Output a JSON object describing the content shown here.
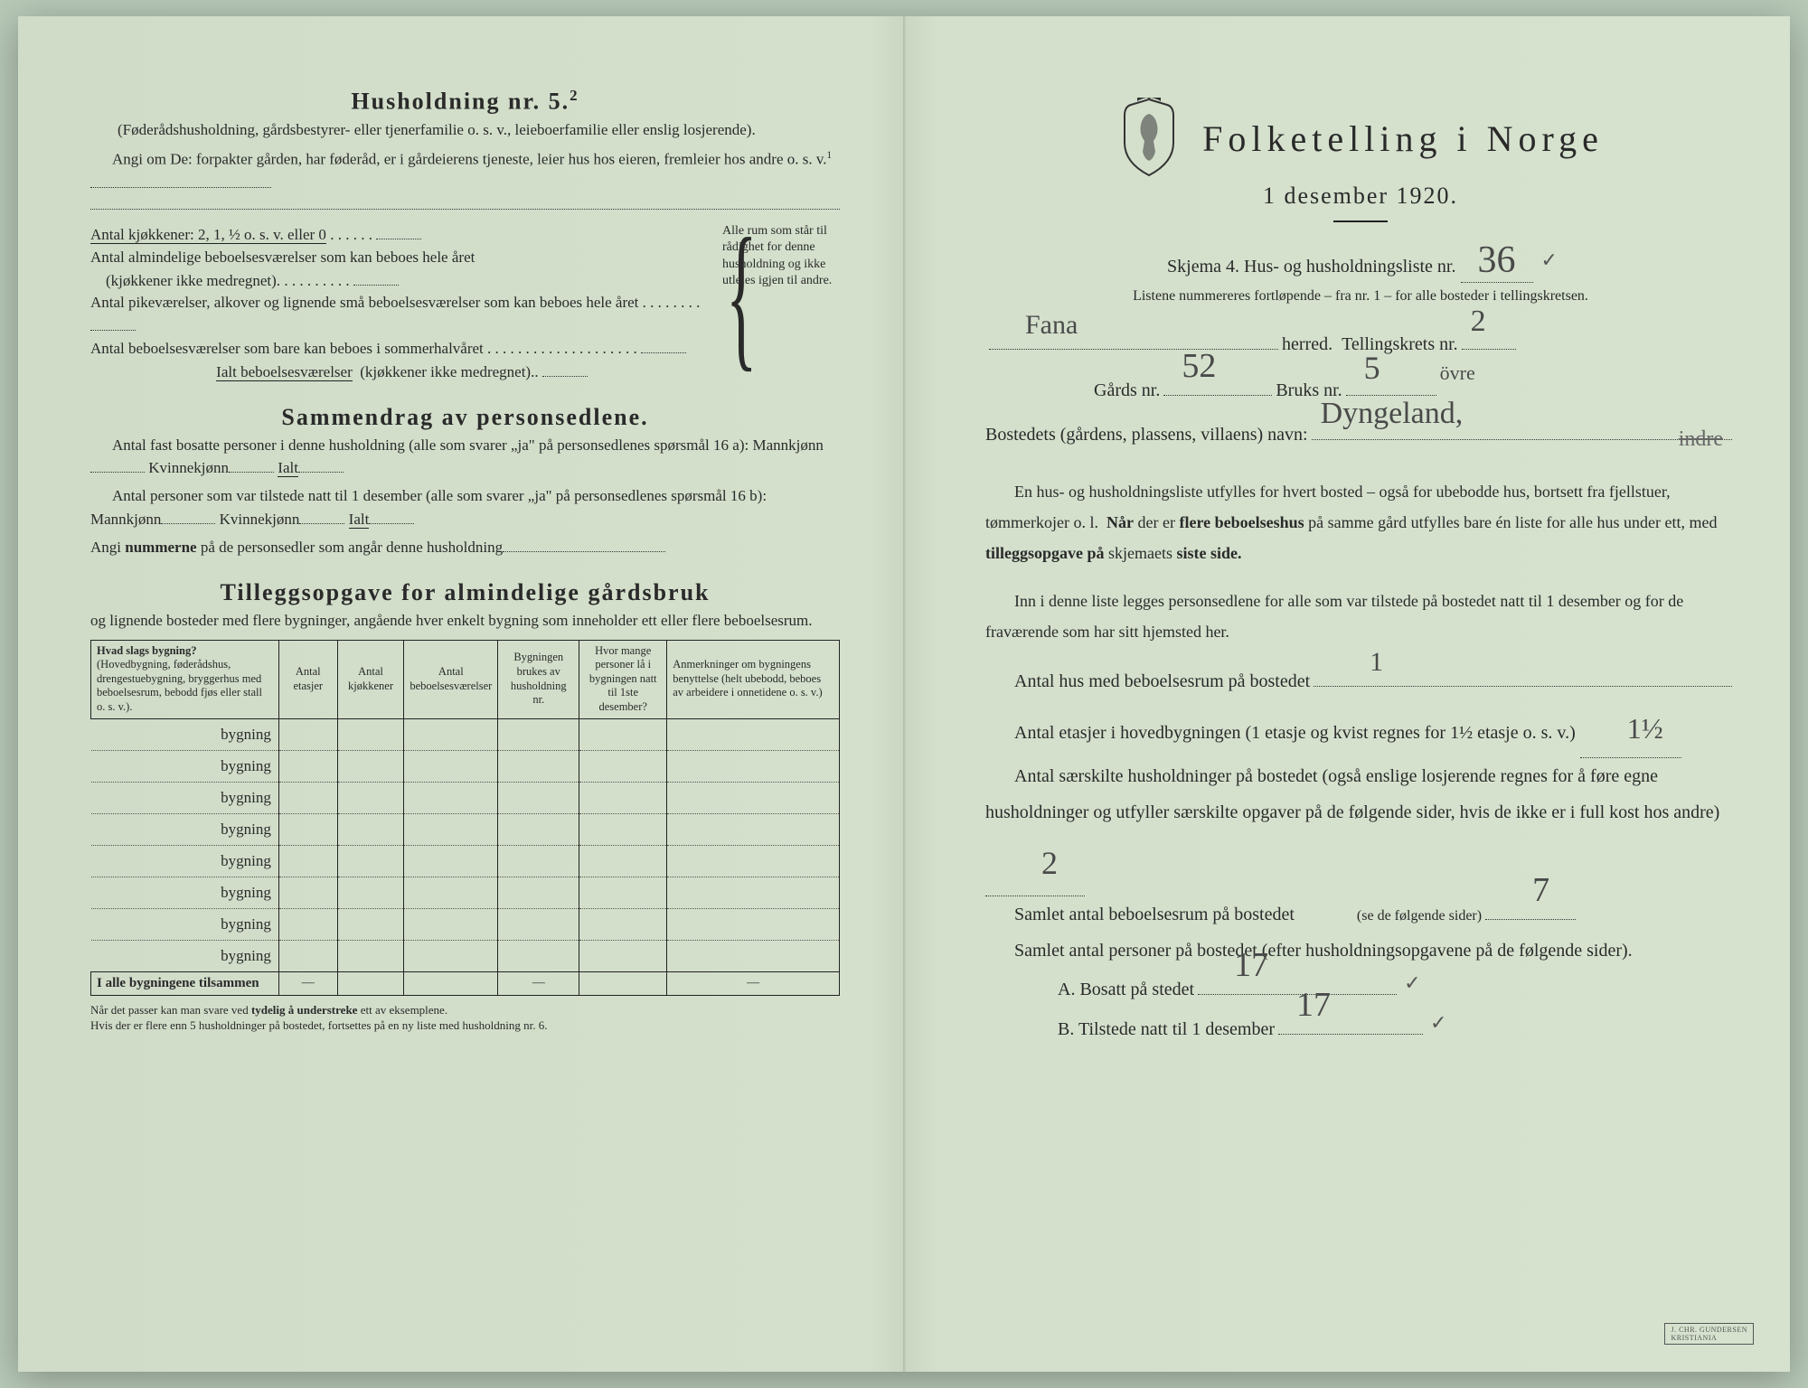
{
  "left": {
    "h5_title": "Husholdning nr. 5.",
    "h5_sup": "2",
    "h5_sub": "(Føderådshusholdning, gårdsbestyrer- eller tjenerfamilie o. s. v., leieboerfamilie eller enslig losjerende).",
    "angi_line": "Angi om De: forpakter gården, har føderåd, er i gårdeierens tjeneste, leier hus hos eieren, fremleier hos andre o. s. v.",
    "angi_sup": "1",
    "kjokkener": "Antal kjøkkener: 2, 1, ½ o. s. v. eller 0",
    "alm_beboelse": "Antal almindelige beboelsesværelser som kan beboes hele året",
    "alm_beboelse_note": "(kjøkkener ikke medregnet).",
    "pike": "Antal pikeværelser, alkover og lignende små beboelsesværelser som kan beboes hele året",
    "sommer": "Antal beboelsesværelser som bare kan beboes i sommerhalvåret",
    "ialt": "Ialt beboelsesværelser",
    "ialt_note": "(kjøkkener ikke medregnet).",
    "brace_text": "Alle rum som står til rådighet for denne husholdning og ikke utleies igjen til andre.",
    "sammendrag_title": "Sammendrag av personsedlene.",
    "sam_line1": "Antal fast bosatte personer i denne husholdning (alle som svarer „ja\" på personsedlenes spørsmål 16 a): Mannkjønn",
    "sam_kvinne": "Kvinnekjønn",
    "sam_ialt": "Ialt",
    "sam_line2": "Antal personer som var tilstede natt til 1 desember (alle som svarer „ja\" på personsedlenes spørsmål 16 b): Mannkjønn",
    "angi_num": "Angi nummerne på de personsedler som angår denne husholdning",
    "tillegg_title": "Tilleggsopgave for almindelige gårdsbruk",
    "tillegg_sub": "og lignende bosteder med flere bygninger, angående hver enkelt bygning som inneholder ett eller flere beboelsesrum.",
    "table": {
      "cols": [
        "Hvad slags bygning?\n(Hovedbygning, føderådshus, drengestuebygning, bryggerhus med beboelsesrum, bebodd fjøs eller stall o. s. v.).",
        "Antal etasjer",
        "Antal kjøkkener",
        "Antal beboelsesværelser",
        "Bygningen brukes av husholdning nr.",
        "Hvor mange personer lå i bygningen natt til 1ste desember?",
        "Anmerkninger om bygningens benyttelse (helt ubebodd, beboes av arbeidere i onnetidene o. s. v.)"
      ],
      "row_label": "bygning",
      "row_count": 8,
      "total_label": "I alle bygningene tilsammen"
    },
    "footnote": "Når det passer kan man svare ved tydelig å understreke ett av eksemplene.\nHvis der er flere enn 5 husholdninger på bostedet, fortsettes på en ny liste med husholdning nr. 6."
  },
  "right": {
    "title": "Folketelling i Norge",
    "date": "1 desember 1920.",
    "skjema": "Skjema 4.  Hus- og husholdningsliste nr.",
    "liste_nr": "36",
    "liste_sub": "Listene nummereres fortløpende – fra nr. 1 – for alle bosteder i tellingskretsen.",
    "herred_val": "Fana",
    "herred_lbl": "herred.",
    "tellingskrets_lbl": "Tellingskrets nr.",
    "tellingskrets_val": "2",
    "gards_lbl": "Gårds nr.",
    "gards_val": "52",
    "bruks_lbl": "Bruks nr.",
    "bruks_val": "5",
    "ovre": "övre",
    "bosted_lbl": "Bostedets (gårdens, plassens, villaens) navn:",
    "bosted_val": "Dyngeland,",
    "bosted_strike": "indre",
    "para1": "En hus- og husholdningsliste utfylles for hvert bosted – også for ubebodde hus, bortsett fra fjellstuer, tømmerkojer o. l.  Når der er flere beboelseshus på samme gård utfylles bare én liste for alle hus under ett, med tilleggsopgave på skjemaets siste side.",
    "para2": "Inn i denne liste legges personsedlene for alle som var tilstede på bostedet natt til 1 desember og for de fraværende som har sitt hjemsted her.",
    "q1": "Antal hus med beboelsesrum på bostedet",
    "q1_val": "1",
    "q2a": "Antal etasjer i hovedbygningen (1 etasje og kvist regnes for 1½ etasje o. s. v.)",
    "q2_val": "1½",
    "q3": "Antal særskilte husholdninger på bostedet (også enslige losjerende regnes for å føre egne husholdninger og utfyller særskilte opgaver på de følgende sider, hvis de ikke er i full kost hos andre)",
    "q3_val": "2",
    "q4": "Samlet antal beboelsesrum på bostedet",
    "q4_note": "(se de følgende sider)",
    "q4_val": "7",
    "q5": "Samlet antal personer på bostedet (efter husholdningsopgavene på de følgende sider).",
    "qA": "A.  Bosatt på stedet",
    "qA_val": "17",
    "qB": "B.  Tilstede natt til 1 desember",
    "qB_val": "17",
    "check": "✓"
  },
  "colors": {
    "paper": "#d4e0cc",
    "ink": "#2a2a2a",
    "pencil": "#4a4a4a"
  }
}
